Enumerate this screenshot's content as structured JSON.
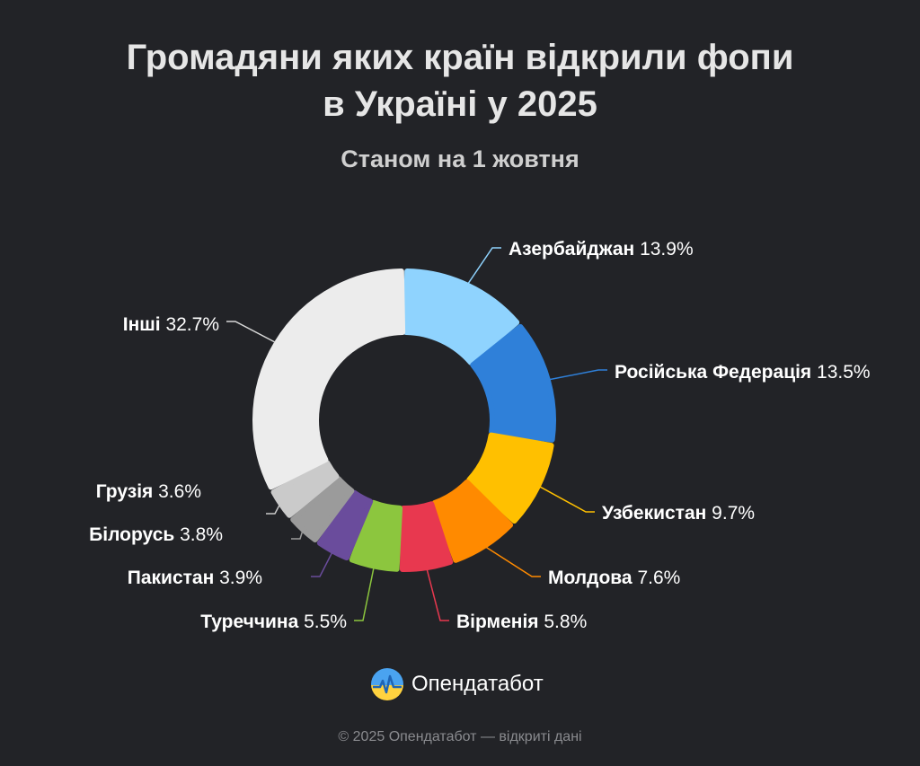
{
  "header": {
    "title_line1": "Громадяни яких країн відкрили фопи",
    "title_line2": "в Україні у 2025",
    "subtitle": "Станом на 1 жовтня"
  },
  "chart_data": {
    "type": "pie",
    "title": "Громадяни яких країн відкрили фопи в Україні у 2025",
    "subtitle": "Станом на 1 жовтня",
    "unit": "%",
    "slices": [
      {
        "label": "Азербайджан",
        "value": 13.9,
        "display": "13.9%",
        "color": "#8fd3fe"
      },
      {
        "label": "Російська Федерація",
        "value": 13.5,
        "display": "13.5%",
        "color": "#2f80d9"
      },
      {
        "label": "Узбекистан",
        "value": 9.7,
        "display": "9.7%",
        "color": "#ffc000"
      },
      {
        "label": "Молдова",
        "value": 7.6,
        "display": "7.6%",
        "color": "#ff8a00"
      },
      {
        "label": "Вірменія",
        "value": 5.8,
        "display": "5.8%",
        "color": "#e8384f"
      },
      {
        "label": "Туреччина",
        "value": 5.5,
        "display": "5.5%",
        "color": "#8cc63e"
      },
      {
        "label": "Пакистан",
        "value": 3.9,
        "display": "3.9%",
        "color": "#6a4c9c"
      },
      {
        "label": "Білорусь",
        "value": 3.8,
        "display": "3.8%",
        "color": "#9b9b9b"
      },
      {
        "label": "Грузія",
        "value": 3.6,
        "display": "3.6%",
        "color": "#cacaca"
      },
      {
        "label": "Інші",
        "value": 32.7,
        "display": "32.7%",
        "color": "#ececec"
      }
    ]
  },
  "brand": {
    "name": "Опендатабот",
    "logo_icon": "opendatabot-logo-icon"
  },
  "footer": {
    "text": "© 2025 Опендатабот — відкриті дані"
  }
}
